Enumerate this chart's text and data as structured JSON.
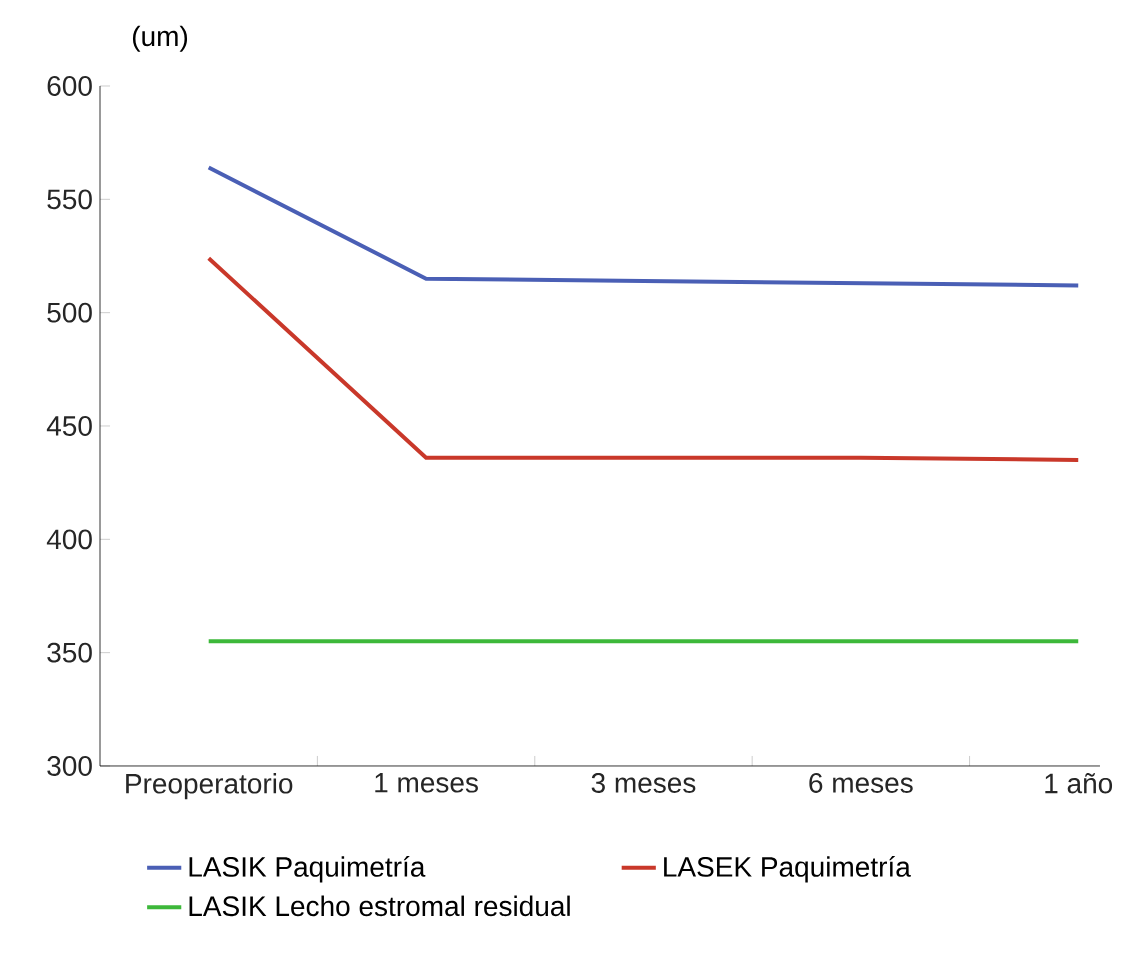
{
  "chart_data": {
    "type": "line",
    "ylabel": "(um)",
    "categories": [
      "Preoperatorio",
      "1 meses",
      "3 meses",
      "6 meses",
      "1 año"
    ],
    "ylim": [
      300,
      600
    ],
    "yticks": [
      300,
      350,
      400,
      450,
      500,
      550,
      600
    ],
    "legend": "bottom",
    "grid": false,
    "marker": "none",
    "series": [
      {
        "name": "LASIK Paquimetría",
        "color": "#4a5fb5",
        "values": [
          564,
          515,
          514,
          513,
          512
        ]
      },
      {
        "name": "LASEK Paquimetría",
        "color": "#c9382a",
        "values": [
          524,
          436,
          436,
          436,
          435
        ]
      },
      {
        "name": "LASIK Lecho estromal residual",
        "color": "#3db83a",
        "values": [
          355,
          355,
          355,
          355,
          355
        ]
      }
    ]
  }
}
